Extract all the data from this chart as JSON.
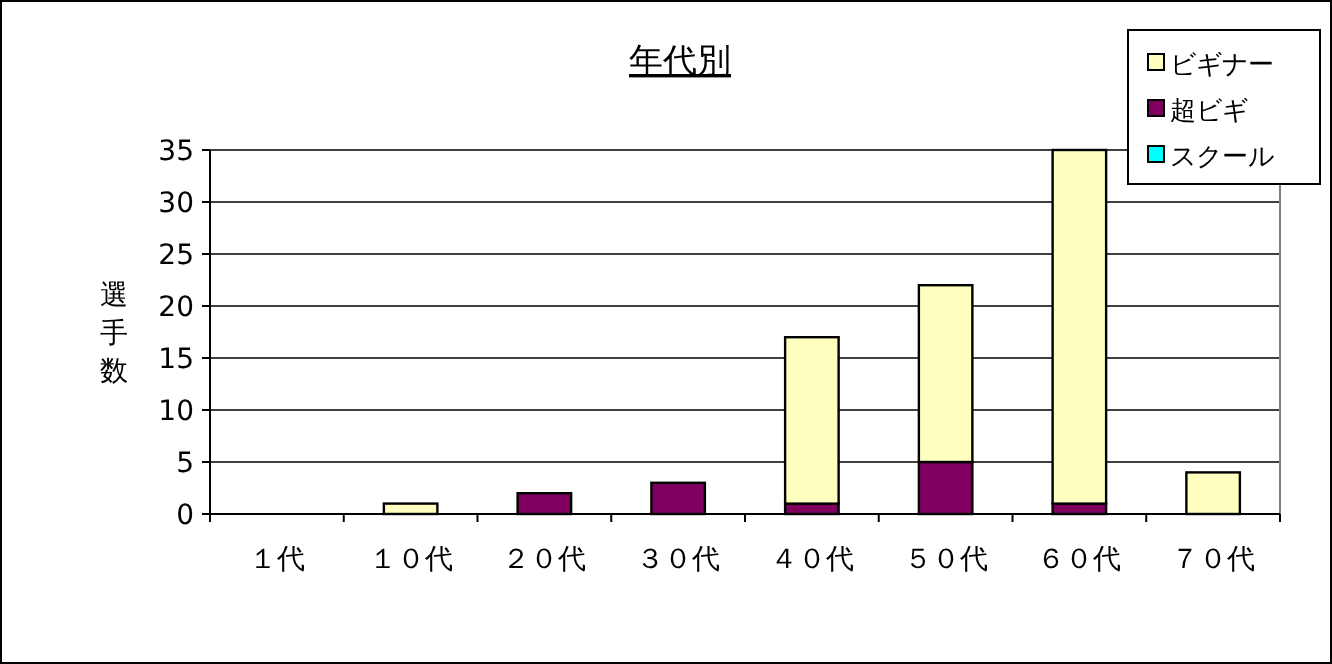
{
  "chart_data": {
    "type": "bar",
    "title": "年代別",
    "ylabel": "選手数",
    "categories": [
      "１代",
      "１０代",
      "２０代",
      "３０代",
      "４０代",
      "５０代",
      "６０代",
      "７０代"
    ],
    "stacked": true,
    "series": [
      {
        "name": "スクール",
        "color": "#00ffff",
        "values": [
          0,
          0,
          0,
          0,
          0,
          0,
          0,
          0
        ]
      },
      {
        "name": "超ビギ",
        "color": "#800060",
        "values": [
          0,
          0,
          2,
          3,
          1,
          5,
          1,
          0
        ]
      },
      {
        "name": "ビギナー",
        "color": "#ffffc0",
        "values": [
          0,
          1,
          0,
          0,
          16,
          17,
          34,
          4
        ]
      }
    ],
    "ylim": [
      0,
      35
    ],
    "yticks": [
      0,
      5,
      10,
      15,
      20,
      25,
      30,
      35
    ],
    "grid": "y",
    "legend": "top right"
  }
}
